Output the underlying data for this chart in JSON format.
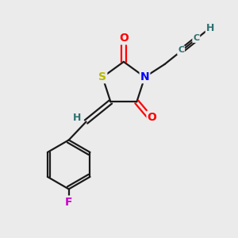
{
  "background_color": "#ebebeb",
  "atom_colors": {
    "S": "#b8b800",
    "N": "#0000ff",
    "O": "#ff0000",
    "F": "#cc00cc",
    "C": "#000000",
    "H": "#2e7070"
  },
  "bond_color": "#1a1a1a",
  "lw": 1.6
}
